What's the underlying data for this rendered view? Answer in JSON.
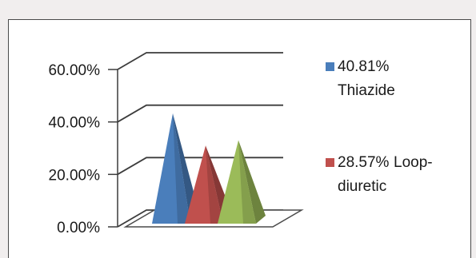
{
  "chart_data": {
    "type": "bar",
    "subtype": "3d-pyramid",
    "categories": [
      "Thiazide",
      "Loop-diuretic",
      ""
    ],
    "values": [
      40.81,
      28.57,
      30.6
    ],
    "ylim": [
      0,
      60
    ],
    "y_tick_labels": [
      "0.00%",
      "20.00%",
      "40.00%",
      "60.00%"
    ],
    "grid": true,
    "legend_position": "right",
    "colors": [
      "#4a7ebb",
      "#c0504d",
      "#9bbb59"
    ],
    "legend": [
      {
        "value": "40.81%",
        "label": "Thiazide",
        "color": "#4a7ebb"
      },
      {
        "value": "28.57%",
        "label": "Loop-diuretic",
        "label_line1": "Loop-",
        "label_line2": "diuretic",
        "color": "#c0504d"
      }
    ]
  }
}
